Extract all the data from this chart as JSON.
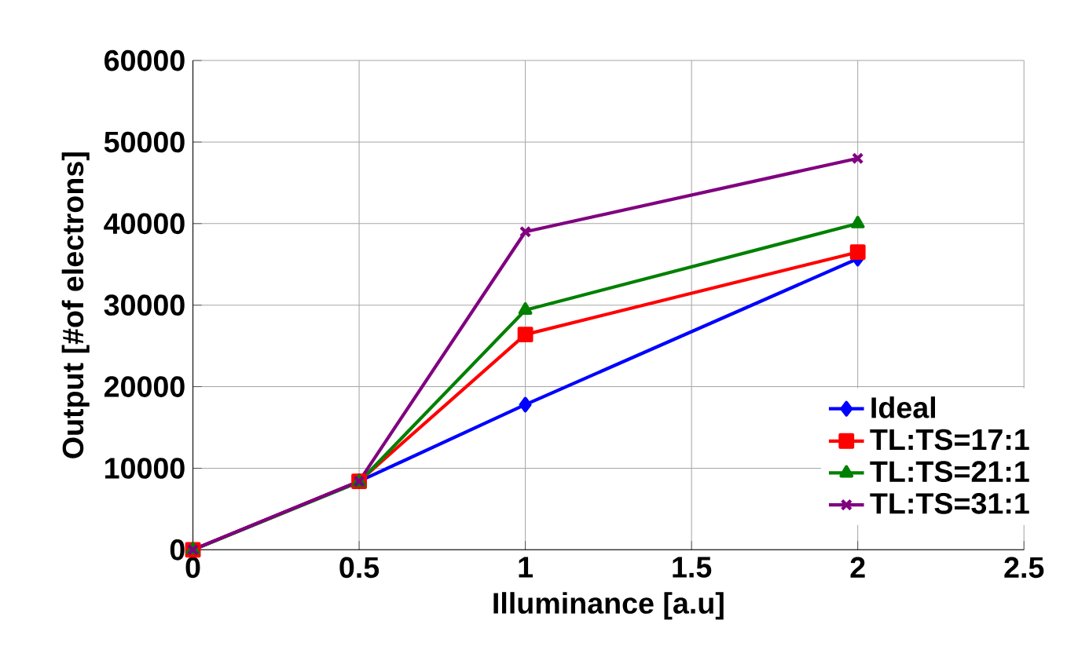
{
  "chart_data": {
    "type": "line",
    "xlabel": "Illuminance [a.u]",
    "ylabel": "Output [#of electrons]",
    "x": [
      0,
      0.5,
      1,
      2
    ],
    "series": [
      {
        "name": "Ideal",
        "color": "#0000ff",
        "marker": "diamond",
        "values": [
          0,
          8400,
          17800,
          35700
        ]
      },
      {
        "name": "TL:TS=17:1",
        "color": "#ff0000",
        "marker": "square",
        "values": [
          0,
          8400,
          26400,
          36500
        ]
      },
      {
        "name": "TL:TS=21:1",
        "color": "#008000",
        "marker": "triangle",
        "values": [
          0,
          8300,
          29400,
          40000
        ]
      },
      {
        "name": "TL:TS=31:1",
        "color": "#800080",
        "marker": "cross",
        "values": [
          0,
          8400,
          39000,
          48000
        ]
      }
    ],
    "xlim": [
      0,
      2.5
    ],
    "xticks": [
      0,
      0.5,
      1,
      1.5,
      2,
      2.5
    ],
    "ylim": [
      0,
      60000
    ],
    "yticks": [
      0,
      10000,
      20000,
      30000,
      40000,
      50000,
      60000
    ],
    "grid": true,
    "legend": "right"
  }
}
